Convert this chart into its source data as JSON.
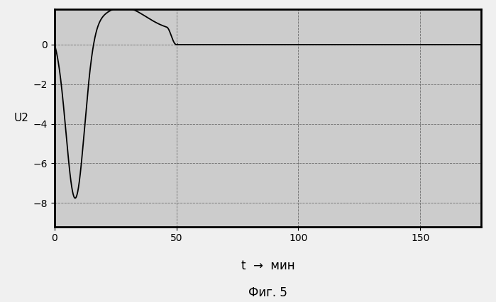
{
  "title": "",
  "xlabel": "t  →  мин",
  "ylabel": "U2",
  "caption": "Фиг. 5",
  "xlim": [
    0,
    175
  ],
  "ylim": [
    -9.2,
    1.8
  ],
  "yticks": [
    0,
    -2,
    -4,
    -6,
    -8
  ],
  "xticks": [
    0,
    50,
    100,
    150
  ],
  "bg_color": "#cccccc",
  "line_color": "#000000",
  "grid_color": "#444444",
  "t_end_transient": 50,
  "peak_negative_t": 8,
  "peak_negative_val": -8.6,
  "peak_positive_t": 28,
  "peak_positive_val": 1.2
}
